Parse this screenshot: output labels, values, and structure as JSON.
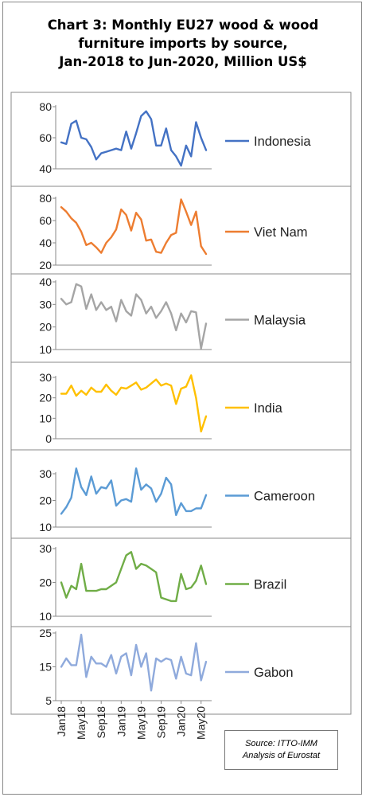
{
  "title": {
    "line1": "Chart 3: Monthly EU27 wood & wood",
    "line2": "furniture imports by source,",
    "line3": "Jan-2018 to Jun-2020, Million US$"
  },
  "source": {
    "line1": "Source: ITTO-IMM",
    "line2": "Analysis of Eurostat"
  },
  "chart_data": {
    "type": "line",
    "x_ticks": [
      "Jan18",
      "May18",
      "Sep18",
      "Jan19",
      "May19",
      "Sep19",
      "Jan20",
      "May20"
    ],
    "x_months": [
      "Jan18",
      "Feb18",
      "Mar18",
      "Apr18",
      "May18",
      "Jun18",
      "Jul18",
      "Aug18",
      "Sep18",
      "Oct18",
      "Nov18",
      "Dec18",
      "Jan19",
      "Feb19",
      "Mar19",
      "Apr19",
      "May19",
      "Jun19",
      "Jul19",
      "Aug19",
      "Sep19",
      "Oct19",
      "Nov19",
      "Dec19",
      "Jan20",
      "Feb20",
      "Mar20",
      "Apr20",
      "May20",
      "Jun20"
    ],
    "panels": [
      {
        "name": "Indonesia",
        "color": "#4472C4",
        "ylim": [
          40,
          80
        ],
        "yticks": [
          40,
          60,
          80
        ],
        "values": [
          57,
          56,
          69,
          71,
          60,
          59,
          54,
          46,
          50,
          51,
          52,
          53,
          52,
          64,
          53,
          63,
          74,
          77,
          72,
          55,
          55,
          66,
          52,
          48,
          42,
          55,
          48,
          70,
          60,
          52
        ]
      },
      {
        "name": "Viet Nam",
        "color": "#ED7D31",
        "ylim": [
          20,
          80
        ],
        "yticks": [
          20,
          40,
          60,
          80
        ],
        "values": [
          72,
          68,
          62,
          58,
          50,
          38,
          40,
          36,
          31,
          40,
          45,
          52,
          70,
          65,
          51,
          67,
          61,
          42,
          43,
          32,
          31,
          40,
          47,
          49,
          79,
          68,
          56,
          68,
          37,
          30
        ]
      },
      {
        "name": "Malaysia",
        "color": "#A5A5A5",
        "ylim": [
          10,
          40
        ],
        "yticks": [
          10,
          20,
          30,
          40
        ],
        "values": [
          32.5,
          30,
          31,
          39,
          38,
          28,
          34.5,
          27.5,
          31,
          27.5,
          29,
          22.5,
          32,
          27,
          25,
          34.5,
          32,
          26,
          29,
          24,
          27,
          31,
          26,
          18.5,
          26,
          22,
          27,
          26.5,
          10.5,
          21.5
        ]
      },
      {
        "name": "India",
        "color": "#FFC000",
        "ylim": [
          0,
          30
        ],
        "yticks": [
          0,
          10,
          20,
          30
        ],
        "values": [
          22,
          22,
          26,
          21,
          23.5,
          21.5,
          25,
          23,
          23,
          26.5,
          23.5,
          21.5,
          25,
          24.5,
          26,
          27.5,
          24,
          25,
          27,
          29,
          26,
          27,
          26,
          17,
          24.5,
          25.5,
          31,
          20,
          3.5,
          11
        ]
      },
      {
        "name": "Cameroon",
        "color": "#5B9BD5",
        "ylim": [
          10,
          30
        ],
        "yticks": [
          10,
          20,
          30
        ],
        "values": [
          15,
          17.5,
          21,
          32,
          25,
          22,
          29,
          22.5,
          25,
          24.5,
          27.5,
          18,
          20,
          20.5,
          19.5,
          32,
          24,
          26,
          24.5,
          19.5,
          22.5,
          28.5,
          26,
          14.5,
          19,
          16,
          16,
          17,
          17,
          22
        ]
      },
      {
        "name": "Brazil",
        "color": "#70AD47",
        "ylim": [
          10,
          30
        ],
        "yticks": [
          10,
          20,
          30
        ],
        "values": [
          20,
          15.5,
          19,
          18,
          25.5,
          17.5,
          17.5,
          17.5,
          18,
          18,
          19,
          20,
          24,
          28,
          29,
          24,
          25.5,
          25,
          24,
          23,
          15.5,
          15,
          14.5,
          14.5,
          22.5,
          18,
          18.5,
          20.5,
          25,
          19.5
        ]
      },
      {
        "name": "Gabon",
        "color": "#8FAADC",
        "ylim": [
          5,
          25
        ],
        "yticks": [
          5,
          15,
          25
        ],
        "values": [
          15,
          17.5,
          15.5,
          15.5,
          24.5,
          12,
          18,
          16,
          16,
          15,
          18.5,
          13,
          18,
          19,
          12.5,
          21.5,
          15,
          19,
          8,
          17.5,
          16.5,
          17.5,
          17,
          11.5,
          18,
          13,
          12.5,
          22,
          11,
          16.5
        ]
      }
    ]
  }
}
